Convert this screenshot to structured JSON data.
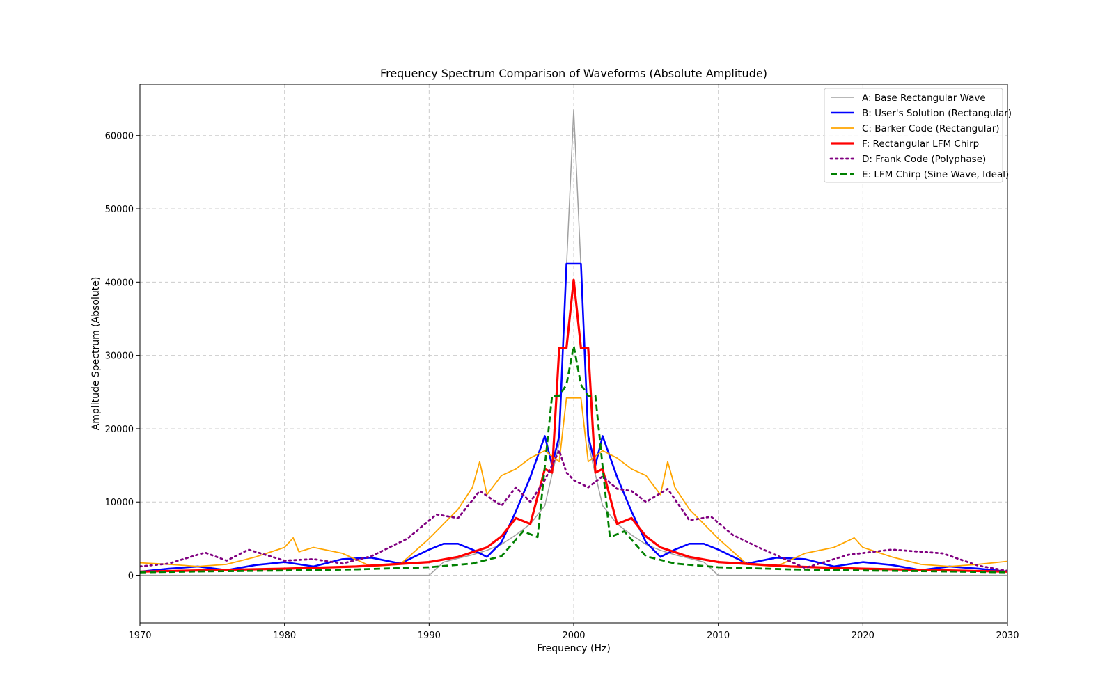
{
  "chart_data": {
    "type": "line",
    "title": "Frequency Spectrum Comparison of Waveforms (Absolute Amplitude)",
    "xlabel": "Frequency (Hz)",
    "ylabel": "Amplitude Spectrum (Absolute)",
    "xlim": [
      1970,
      2030
    ],
    "ylim": [
      -6500,
      67000
    ],
    "xticks": [
      1970,
      1980,
      1990,
      2000,
      2010,
      2020,
      2030
    ],
    "yticks": [
      0,
      10000,
      20000,
      30000,
      40000,
      50000,
      60000
    ],
    "grid": true,
    "legend_position": "top-right",
    "series": [
      {
        "name": "A: Base Rectangular Wave",
        "color": "#a0a0a0",
        "style": "solid",
        "width": 1.5,
        "x": [
          1970,
          1990,
          1991,
          1992,
          1993,
          1994,
          1995,
          1996,
          1997,
          1998,
          1999,
          1999.5,
          2000,
          2000.5,
          2001,
          2002,
          2003,
          2004,
          2005,
          2006,
          2007,
          2008,
          2009,
          2010,
          2030
        ],
        "y": [
          0,
          0,
          1800,
          2300,
          2800,
          3400,
          4200,
          5500,
          7000,
          9500,
          18000,
          42000,
          63500,
          42000,
          18000,
          9500,
          7000,
          5500,
          4200,
          3400,
          2800,
          2300,
          1800,
          0,
          0
        ]
      },
      {
        "name": "B: User's Solution (Rectangular)",
        "color": "#0000ff",
        "style": "solid",
        "width": 2.6,
        "x": [
          1970,
          1972,
          1974,
          1976,
          1978,
          1980,
          1982,
          1984,
          1986,
          1988,
          1990,
          1991,
          1992,
          1993,
          1994,
          1995,
          1996,
          1997,
          1998,
          1998.5,
          1999,
          1999.5,
          2000,
          2000.5,
          2001,
          2001.5,
          2002,
          2003,
          2004,
          2005,
          2006,
          2007,
          2008,
          2009,
          2010,
          2012,
          2014,
          2016,
          2018,
          2020,
          2022,
          2024,
          2026,
          2028,
          2030
        ],
        "y": [
          500,
          900,
          1200,
          700,
          1400,
          1800,
          1200,
          2200,
          2400,
          1600,
          3500,
          4300,
          4300,
          3500,
          2500,
          4500,
          8700,
          13400,
          19000,
          15000,
          19000,
          42500,
          42500,
          42500,
          19000,
          15000,
          19000,
          13400,
          8700,
          4500,
          2500,
          3500,
          4300,
          4300,
          3500,
          1600,
          2400,
          2200,
          1200,
          1800,
          1400,
          700,
          1200,
          900,
          500
        ]
      },
      {
        "name": "C: Barker Code (Rectangular)",
        "color": "#ffa500",
        "style": "solid",
        "width": 1.8,
        "x": [
          1970,
          1972,
          1974,
          1976,
          1978,
          1980,
          1980.6,
          1981,
          1982,
          1984,
          1986,
          1988,
          1990,
          1991,
          1992,
          1993,
          1993.5,
          1994,
          1995,
          1996,
          1997,
          1998,
          1999,
          1999.5,
          2000,
          2000.5,
          2001,
          2002,
          2003,
          2004,
          2005,
          2006,
          2006.5,
          2007,
          2008,
          2009,
          2010,
          2012,
          2014,
          2016,
          2018,
          2019.4,
          2020,
          2022,
          2024,
          2026,
          2028,
          2030
        ],
        "y": [
          1700,
          1500,
          1200,
          1500,
          2500,
          3800,
          5100,
          3200,
          3800,
          3000,
          1200,
          1500,
          5000,
          7000,
          9000,
          12000,
          15500,
          11000,
          13600,
          14500,
          16000,
          17000,
          15500,
          24200,
          24200,
          24200,
          15500,
          17000,
          16000,
          14500,
          13600,
          11000,
          15500,
          12000,
          9000,
          7000,
          5000,
          1500,
          1200,
          3000,
          3800,
          5100,
          3800,
          2500,
          1500,
          1200,
          1500,
          1900
        ]
      },
      {
        "name": "F: Rectangular LFM Chirp",
        "color": "#ff0000",
        "style": "solid",
        "width": 3.2,
        "x": [
          1970,
          1975,
          1980,
          1985,
          1990,
          1992,
          1994,
          1995,
          1996,
          1997,
          1998,
          1998.5,
          1999,
          1999.5,
          2000,
          2000.5,
          2001,
          2001.5,
          2002,
          2003,
          2004,
          2005,
          2006,
          2008,
          2010,
          2015,
          2020,
          2025,
          2030
        ],
        "y": [
          500,
          700,
          900,
          1200,
          1800,
          2500,
          3800,
          5300,
          7800,
          7000,
          14500,
          14000,
          31000,
          31000,
          40300,
          31000,
          31000,
          14000,
          14500,
          7000,
          7800,
          5300,
          3800,
          2500,
          1800,
          1200,
          900,
          700,
          500
        ]
      },
      {
        "name": "D: Frank Code (Polyphase)",
        "color": "#800080",
        "style": "dotted",
        "width": 2.8,
        "x": [
          1970,
          1972,
          1974.5,
          1976,
          1977.5,
          1980,
          1982,
          1984,
          1986,
          1988.5,
          1990.5,
          1992,
          1993.5,
          1995,
          1996,
          1997,
          1998,
          1999,
          1999.5,
          2000,
          2000.5,
          2001,
          2002,
          2003,
          2004,
          2005,
          2006.5,
          2008,
          2009.5,
          2011,
          2013,
          2016,
          2019,
          2022,
          2025.5,
          2028,
          2030
        ],
        "y": [
          1200,
          1600,
          3100,
          2000,
          3500,
          2000,
          2200,
          1600,
          2600,
          5000,
          8300,
          7800,
          11500,
          9500,
          12000,
          10000,
          13000,
          17000,
          14000,
          13000,
          12500,
          12000,
          13500,
          11800,
          11500,
          10000,
          11800,
          7500,
          8000,
          5500,
          3600,
          1000,
          2800,
          3500,
          3000,
          1300,
          600
        ]
      },
      {
        "name": "E: LFM Chirp (Sine Wave, Ideal)",
        "color": "#008000",
        "style": "dashed",
        "width": 2.8,
        "x": [
          1970,
          1975,
          1980,
          1985,
          1990,
          1993,
          1995,
          1996.5,
          1997.5,
          1998.5,
          1999,
          1999.5,
          2000,
          2000.5,
          2001,
          2001.5,
          2002.5,
          2003.5,
          2005,
          2007,
          2010,
          2015,
          2020,
          2025,
          2030
        ],
        "y": [
          400,
          550,
          650,
          800,
          1100,
          1600,
          2600,
          6000,
          5200,
          24500,
          24500,
          26000,
          31300,
          26000,
          24500,
          24500,
          5200,
          6000,
          2600,
          1600,
          1100,
          800,
          650,
          550,
          400
        ]
      }
    ]
  }
}
